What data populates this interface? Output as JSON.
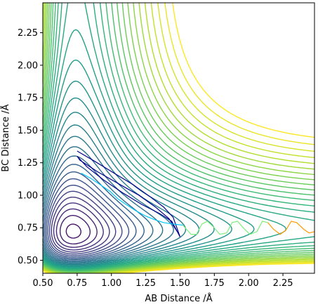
{
  "chart_data": {
    "type": "contour",
    "title": "",
    "xlabel": "AB Distance /Å",
    "ylabel": "BC Distance /Å",
    "xlim": [
      0.5,
      2.48
    ],
    "ylim": [
      0.4,
      2.48
    ],
    "xticks": [
      "0.50",
      "0.75",
      "1.00",
      "1.25",
      "1.50",
      "1.75",
      "2.00",
      "2.25"
    ],
    "yticks": [
      "0.50",
      "0.75",
      "1.00",
      "1.25",
      "1.50",
      "1.75",
      "2.00",
      "2.25"
    ],
    "grid": false,
    "legend": "none",
    "colormap": "viridis",
    "contour_levels": 36,
    "trajectories": [
      {
        "color": "#00008b",
        "points": [
          [
            0.75,
            1.34
          ],
          [
            0.88,
            1.26
          ],
          [
            1.02,
            1.17
          ],
          [
            1.16,
            1.08
          ],
          [
            1.28,
            0.99
          ],
          [
            1.38,
            0.91
          ],
          [
            1.45,
            0.83
          ],
          [
            1.5,
            0.68
          ],
          [
            1.44,
            0.8
          ],
          [
            1.35,
            0.86
          ],
          [
            1.22,
            0.93
          ],
          [
            1.08,
            1.02
          ],
          [
            0.94,
            1.12
          ],
          [
            0.82,
            1.22
          ],
          [
            0.75,
            1.3
          ],
          [
            0.77,
            1.27
          ],
          [
            0.9,
            1.18
          ],
          [
            1.05,
            1.09
          ],
          [
            1.2,
            1.0
          ],
          [
            1.32,
            0.91
          ],
          [
            1.42,
            0.82
          ],
          [
            1.48,
            0.72
          ]
        ]
      },
      {
        "color": "#00c8ff",
        "points": [
          [
            0.78,
            1.17
          ],
          [
            0.85,
            1.13
          ],
          [
            0.92,
            1.08
          ],
          [
            0.99,
            1.03
          ],
          [
            1.05,
            0.97
          ],
          [
            1.12,
            0.92
          ],
          [
            1.18,
            0.88
          ],
          [
            1.25,
            0.84
          ],
          [
            1.32,
            0.81
          ],
          [
            1.38,
            0.79
          ],
          [
            1.44,
            0.78
          ],
          [
            1.52,
            0.77
          ]
        ]
      },
      {
        "color": "#7cf07c",
        "points": [
          [
            1.52,
            0.77
          ],
          [
            1.58,
            0.7
          ],
          [
            1.62,
            0.7
          ],
          [
            1.66,
            0.78
          ],
          [
            1.7,
            0.8
          ],
          [
            1.74,
            0.76
          ],
          [
            1.79,
            0.7
          ],
          [
            1.84,
            0.71
          ],
          [
            1.88,
            0.79
          ],
          [
            1.92,
            0.8
          ],
          [
            1.96,
            0.75
          ],
          [
            2.01,
            0.7
          ],
          [
            2.06,
            0.72
          ],
          [
            2.1,
            0.8
          ],
          [
            2.14,
            0.79
          ]
        ]
      },
      {
        "color": "#ff9a00",
        "points": [
          [
            2.14,
            0.79
          ],
          [
            2.18,
            0.74
          ],
          [
            2.23,
            0.7
          ],
          [
            2.27,
            0.73
          ],
          [
            2.31,
            0.8
          ],
          [
            2.35,
            0.79
          ],
          [
            2.4,
            0.74
          ],
          [
            2.44,
            0.71
          ],
          [
            2.48,
            0.72
          ]
        ]
      }
    ]
  }
}
